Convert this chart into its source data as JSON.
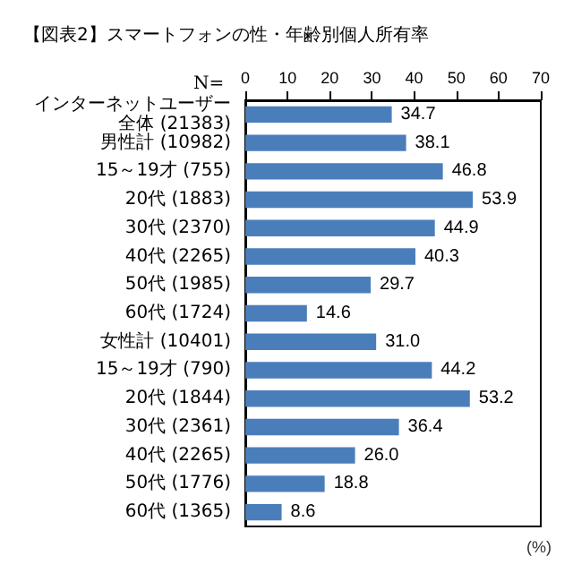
{
  "chart_data": {
    "type": "bar",
    "orientation": "horizontal",
    "title": "【図表2】スマートフォンの性・年齢別個人所有率",
    "xlabel": "(%)",
    "annotations": [
      "N="
    ],
    "categories": [
      "インターネットユーザー全体 (21383)",
      "男性計 (10982)",
      "15～19才 (755)",
      "20代 (1883)",
      "30代 (2370)",
      "40代 (2265)",
      "50代 (1985)",
      "60代 (1724)",
      "女性計 (10401)",
      "15～19才 (790)",
      "20代 (1844)",
      "30代 (2361)",
      "40代 (2265)",
      "50代 (1776)",
      "60代 (1365)"
    ],
    "values": [
      34.7,
      38.1,
      46.8,
      53.9,
      44.9,
      40.3,
      29.7,
      14.6,
      31.0,
      44.2,
      53.2,
      36.4,
      26.0,
      18.8,
      8.6
    ],
    "value_labels": [
      "34.7",
      "38.1",
      "46.8",
      "53.9",
      "44.9",
      "40.3",
      "29.7",
      "14.6",
      "31.0",
      "44.2",
      "53.2",
      "36.4",
      "26.0",
      "18.8",
      "8.6"
    ],
    "color": "#4a7ebb",
    "xlim": [
      0,
      70
    ],
    "xticks": [
      0,
      10,
      20,
      30,
      40,
      50,
      60,
      70
    ],
    "grid": false
  }
}
